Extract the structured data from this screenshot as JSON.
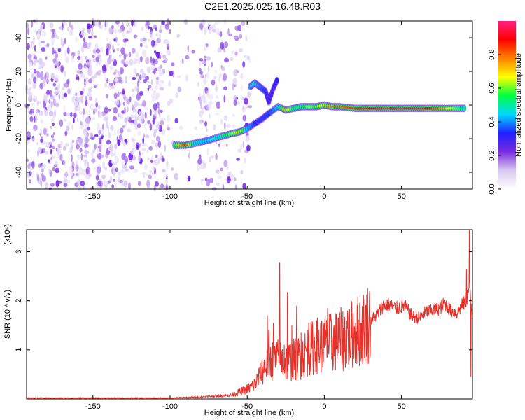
{
  "title": "C2E1.2025.025.16.48.R03",
  "chart_data": [
    {
      "type": "heatmap",
      "xlabel": "Height of straight line (km)",
      "ylabel": "Frequency (Hz)",
      "xlim": [
        -193,
        96
      ],
      "ylim": [
        -50,
        50
      ],
      "xticks": [
        -150,
        -100,
        -50,
        0,
        50
      ],
      "yticks": [
        -40,
        -20,
        0,
        20,
        40
      ],
      "colorbar": {
        "label": "Normalized spectral amplitude",
        "range": [
          0,
          1
        ],
        "ticks": [
          0.0,
          0.2,
          0.4,
          0.6,
          0.8
        ],
        "tick_labels": [
          "0.0",
          "0.2",
          "0.4",
          "0.6",
          "0.8"
        ],
        "colormap": [
          "#ffffff",
          "#d8c8f0",
          "#7a2be0",
          "#2020ff",
          "#00d8ff",
          "#00ff40",
          "#ffff00",
          "#ff8000",
          "#ff0000",
          "#ff2080"
        ]
      },
      "features": {
        "noise_region_x": [
          -193,
          -60
        ],
        "noise_gap_x": [
          -100,
          -82
        ],
        "ridge": [
          {
            "x": -97,
            "y": -24,
            "v": 0.55
          },
          {
            "x": -90,
            "y": -24,
            "v": 0.9
          },
          {
            "x": -85,
            "y": -23,
            "v": 0.5
          },
          {
            "x": -75,
            "y": -21,
            "v": 0.45
          },
          {
            "x": -68,
            "y": -19,
            "v": 0.5
          },
          {
            "x": -60,
            "y": -17,
            "v": 0.6
          },
          {
            "x": -55,
            "y": -16,
            "v": 0.7
          },
          {
            "x": -50,
            "y": -14,
            "v": 0.45
          },
          {
            "x": -45,
            "y": -11,
            "v": 0.35
          },
          {
            "x": -40,
            "y": -8,
            "v": 0.35
          },
          {
            "x": -36,
            "y": -5,
            "v": 0.35
          },
          {
            "x": -30,
            "y": -1,
            "v": 0.45
          },
          {
            "x": -25,
            "y": -3,
            "v": 0.75
          },
          {
            "x": -20,
            "y": -2,
            "v": 0.55
          },
          {
            "x": -15,
            "y": -1,
            "v": 0.55
          },
          {
            "x": -10,
            "y": -1,
            "v": 0.6
          },
          {
            "x": -5,
            "y": -1,
            "v": 0.6
          },
          {
            "x": 0,
            "y": 0,
            "v": 0.7
          },
          {
            "x": 5,
            "y": -1,
            "v": 0.8
          },
          {
            "x": 10,
            "y": -1,
            "v": 0.8
          },
          {
            "x": 20,
            "y": -2,
            "v": 0.85
          },
          {
            "x": 40,
            "y": -2,
            "v": 0.95
          },
          {
            "x": 60,
            "y": -2,
            "v": 0.95
          },
          {
            "x": 75,
            "y": -2,
            "v": 0.8
          },
          {
            "x": 85,
            "y": -2,
            "v": 0.6
          },
          {
            "x": 92,
            "y": -2,
            "v": 0.5
          }
        ],
        "branch": [
          {
            "x": -48,
            "y": 11,
            "v": 0.45
          },
          {
            "x": -45,
            "y": 13,
            "v": 0.5
          },
          {
            "x": -42,
            "y": 11,
            "v": 0.4
          },
          {
            "x": -38,
            "y": 8,
            "v": 0.35
          },
          {
            "x": -36,
            "y": 2,
            "v": 0.3
          },
          {
            "x": -33,
            "y": 10,
            "v": 0.3
          },
          {
            "x": -30,
            "y": 16,
            "v": 0.35
          }
        ]
      }
    },
    {
      "type": "line",
      "xlabel": "Height of straight line (km)",
      "ylabel": "SNR (10 * v/v)",
      "y_scale_label": "(x10⁴)",
      "xlim": [
        -193,
        96
      ],
      "ylim": [
        0,
        3.45
      ],
      "xticks": [
        -150,
        -100,
        -50,
        0,
        50
      ],
      "yticks": [
        1,
        2,
        3
      ],
      "color": "#e8302a",
      "envelope": [
        {
          "x": -193,
          "y": 0.02
        },
        {
          "x": -100,
          "y": 0.02
        },
        {
          "x": -80,
          "y": 0.04
        },
        {
          "x": -60,
          "y": 0.08
        },
        {
          "x": -50,
          "y": 0.2
        },
        {
          "x": -45,
          "y": 0.3
        },
        {
          "x": -42,
          "y": 0.45
        },
        {
          "x": -38,
          "y": 0.7
        },
        {
          "x": -34,
          "y": 0.8
        },
        {
          "x": -30,
          "y": 0.8
        },
        {
          "x": -25,
          "y": 0.75
        },
        {
          "x": -20,
          "y": 0.8
        },
        {
          "x": -15,
          "y": 0.85
        },
        {
          "x": -10,
          "y": 1.0
        },
        {
          "x": -5,
          "y": 1.1
        },
        {
          "x": 0,
          "y": 1.1
        },
        {
          "x": 5,
          "y": 1.15
        },
        {
          "x": 10,
          "y": 1.2
        },
        {
          "x": 15,
          "y": 1.25
        },
        {
          "x": 20,
          "y": 1.35
        },
        {
          "x": 25,
          "y": 1.45
        },
        {
          "x": 30,
          "y": 1.6
        },
        {
          "x": 35,
          "y": 1.75
        },
        {
          "x": 38,
          "y": 1.9
        },
        {
          "x": 42,
          "y": 1.92
        },
        {
          "x": 47,
          "y": 1.85
        },
        {
          "x": 52,
          "y": 1.9
        },
        {
          "x": 57,
          "y": 1.68
        },
        {
          "x": 62,
          "y": 1.65
        },
        {
          "x": 66,
          "y": 1.78
        },
        {
          "x": 70,
          "y": 1.8
        },
        {
          "x": 75,
          "y": 1.85
        },
        {
          "x": 78,
          "y": 1.95
        },
        {
          "x": 82,
          "y": 1.8
        },
        {
          "x": 86,
          "y": 1.75
        },
        {
          "x": 89,
          "y": 1.9
        },
        {
          "x": 92,
          "y": 2.0
        },
        {
          "x": 94,
          "y": 2.3
        },
        {
          "x": 96,
          "y": 1.7
        }
      ],
      "spikes": [
        {
          "x": -37,
          "y": 1.7
        },
        {
          "x": -36,
          "y": 1.4
        },
        {
          "x": -33,
          "y": 1.55
        },
        {
          "x": -29,
          "y": 2.77
        },
        {
          "x": -26,
          "y": 1.1
        },
        {
          "x": -24,
          "y": 2.18
        },
        {
          "x": -21,
          "y": 1.5
        },
        {
          "x": -18,
          "y": 1.9
        },
        {
          "x": -15,
          "y": 1.35
        },
        {
          "x": -10,
          "y": 1.55
        },
        {
          "x": -5,
          "y": 1.6
        },
        {
          "x": 2,
          "y": 1.85
        },
        {
          "x": 9,
          "y": 1.65
        },
        {
          "x": 15,
          "y": 1.8
        },
        {
          "x": 24,
          "y": 1.55
        },
        {
          "x": 92,
          "y": 2.65
        },
        {
          "x": 94,
          "y": 3.45
        },
        {
          "x": 95,
          "y": 0.45
        }
      ]
    }
  ]
}
